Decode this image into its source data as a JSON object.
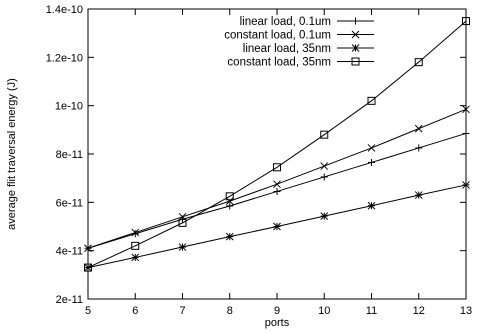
{
  "chart_data": {
    "type": "line",
    "title": "",
    "xlabel": "ports",
    "ylabel": "average flit traversal energy (J)",
    "xlim": [
      5,
      13
    ],
    "ylim": [
      2e-11,
      1.4e-10
    ],
    "x_ticks": [
      5,
      6,
      7,
      8,
      9,
      10,
      11,
      12,
      13
    ],
    "x_tick_labels": [
      "5",
      "6",
      "7",
      "8",
      "9",
      "10",
      "11",
      "12",
      "13"
    ],
    "y_ticks": [
      2e-11,
      4e-11,
      6e-11,
      8e-11,
      1e-10,
      1.2e-10,
      1.4e-10
    ],
    "y_tick_labels": [
      "2e-11",
      "4e-11",
      "6e-11",
      "8e-11",
      "1e-10",
      "1.2e-10",
      "1.4e-10"
    ],
    "grid": false,
    "legend_position": "top-left",
    "x": [
      5,
      6,
      7,
      8,
      9,
      10,
      11,
      12,
      13
    ],
    "series": [
      {
        "name": "linear load, 0.1um",
        "marker": "plus",
        "values": [
          4.1e-11,
          4.7e-11,
          5.3e-11,
          5.85e-11,
          6.45e-11,
          7.05e-11,
          7.65e-11,
          8.25e-11,
          8.85e-11
        ]
      },
      {
        "name": "constant load, 0.1um",
        "marker": "cross",
        "values": [
          4.1e-11,
          4.75e-11,
          5.4e-11,
          6.05e-11,
          6.75e-11,
          7.5e-11,
          8.25e-11,
          9.05e-11,
          9.85e-11
        ]
      },
      {
        "name": "linear load, 35nm",
        "marker": "star",
        "values": [
          3.3e-11,
          3.72e-11,
          4.15e-11,
          4.58e-11,
          5e-11,
          5.43e-11,
          5.86e-11,
          6.3e-11,
          6.72e-11
        ]
      },
      {
        "name": "constant load, 35nm",
        "marker": "square",
        "values": [
          3.3e-11,
          4.2e-11,
          5.15e-11,
          6.25e-11,
          7.45e-11,
          8.8e-11,
          1.02e-10,
          1.18e-10,
          1.35e-10
        ]
      }
    ]
  }
}
